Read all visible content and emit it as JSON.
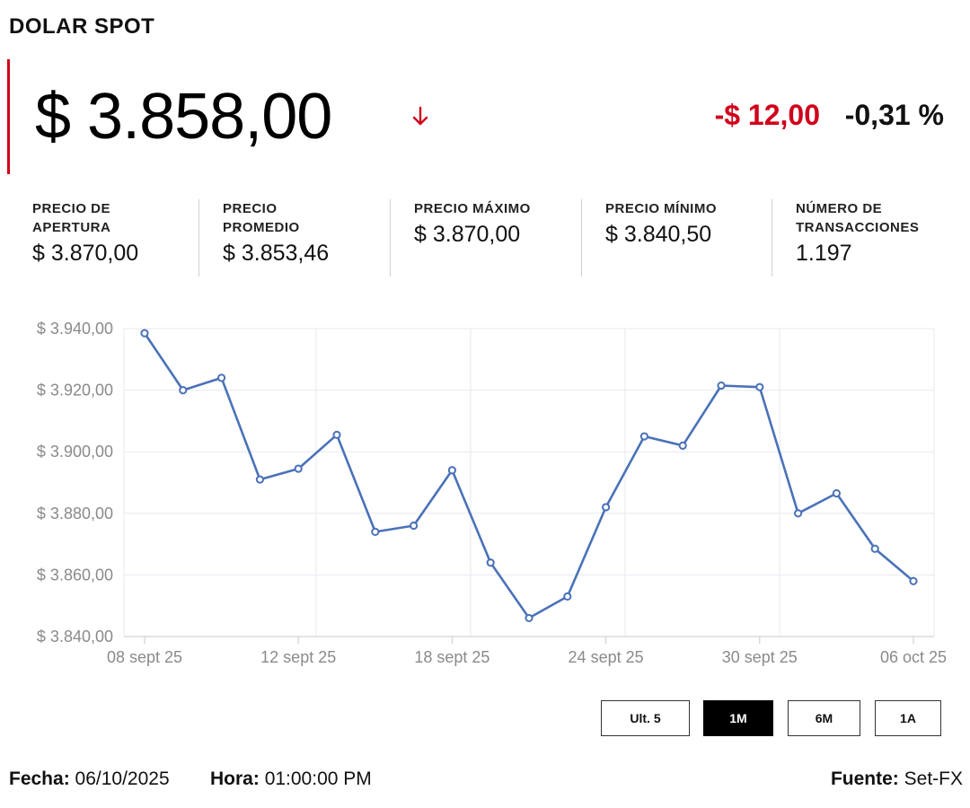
{
  "header": {
    "title": "DOLAR SPOT",
    "price": "$ 3.858,00",
    "change": "-$ 12,00",
    "change_pct": "-0,31 %",
    "accent_color": "#d0021b",
    "trend_icon": "arrow-down-icon"
  },
  "stats": [
    {
      "label": "PRECIO DE\nAPERTURA",
      "value": "$ 3.870,00"
    },
    {
      "label": "PRECIO\nPROMEDIO",
      "value": "$ 3.853,46"
    },
    {
      "label": "PRECIO MÁXIMO",
      "value": "$ 3.870,00"
    },
    {
      "label": "PRECIO MÍNIMO",
      "value": "$ 3.840,50"
    },
    {
      "label": "NÚMERO DE\nTRANSACCIONES",
      "value": "1.197"
    }
  ],
  "chart_data": {
    "type": "line",
    "title": "",
    "xlabel": "",
    "ylabel": "",
    "x": [
      "08 sept 25",
      "09 sept 25",
      "10 sept 25",
      "11 sept 25",
      "12 sept 25",
      "15 sept 25",
      "16 sept 25",
      "17 sept 25",
      "18 sept 25",
      "19 sept 25",
      "22 sept 25",
      "23 sept 25",
      "24 sept 25",
      "25 sept 25",
      "26 sept 25",
      "29 sept 25",
      "30 sept 25",
      "01 oct 25",
      "02 oct 25",
      "03 oct 25",
      "06 oct 25"
    ],
    "values": [
      3938.5,
      3920.0,
      3924.0,
      3891.0,
      3894.5,
      3905.5,
      3874.0,
      3876.0,
      3894.0,
      3864.0,
      3846.0,
      3853.0,
      3882.0,
      3905.0,
      3902.0,
      3921.5,
      3921.0,
      3880.0,
      3886.5,
      3868.5,
      3858.0
    ],
    "x_tick_labels": [
      "08 sept 25",
      "12 sept 25",
      "18 sept 25",
      "24 sept 25",
      "30 sept 25",
      "06 oct 25"
    ],
    "x_tick_indices": [
      0,
      4,
      8,
      12,
      16,
      20
    ],
    "y_ticks": [
      3840,
      3860,
      3880,
      3900,
      3920,
      3940
    ],
    "y_tick_labels": [
      "$ 3.840,00",
      "$ 3.860,00",
      "$ 3.880,00",
      "$ 3.900,00",
      "$ 3.920,00",
      "$ 3.940,00"
    ],
    "ylim": [
      3840,
      3940
    ],
    "grid": true,
    "line_color": "#4a72b8"
  },
  "range_buttons": [
    {
      "label": "Ult. 5",
      "active": false
    },
    {
      "label": "1M",
      "active": true
    },
    {
      "label": "6M",
      "active": false
    },
    {
      "label": "1A",
      "active": false
    }
  ],
  "footer": {
    "date_label": "Fecha:",
    "date_value": "06/10/2025",
    "time_label": "Hora:",
    "time_value": "01:00:00 PM",
    "source_label": "Fuente:",
    "source_value": "Set-FX"
  }
}
